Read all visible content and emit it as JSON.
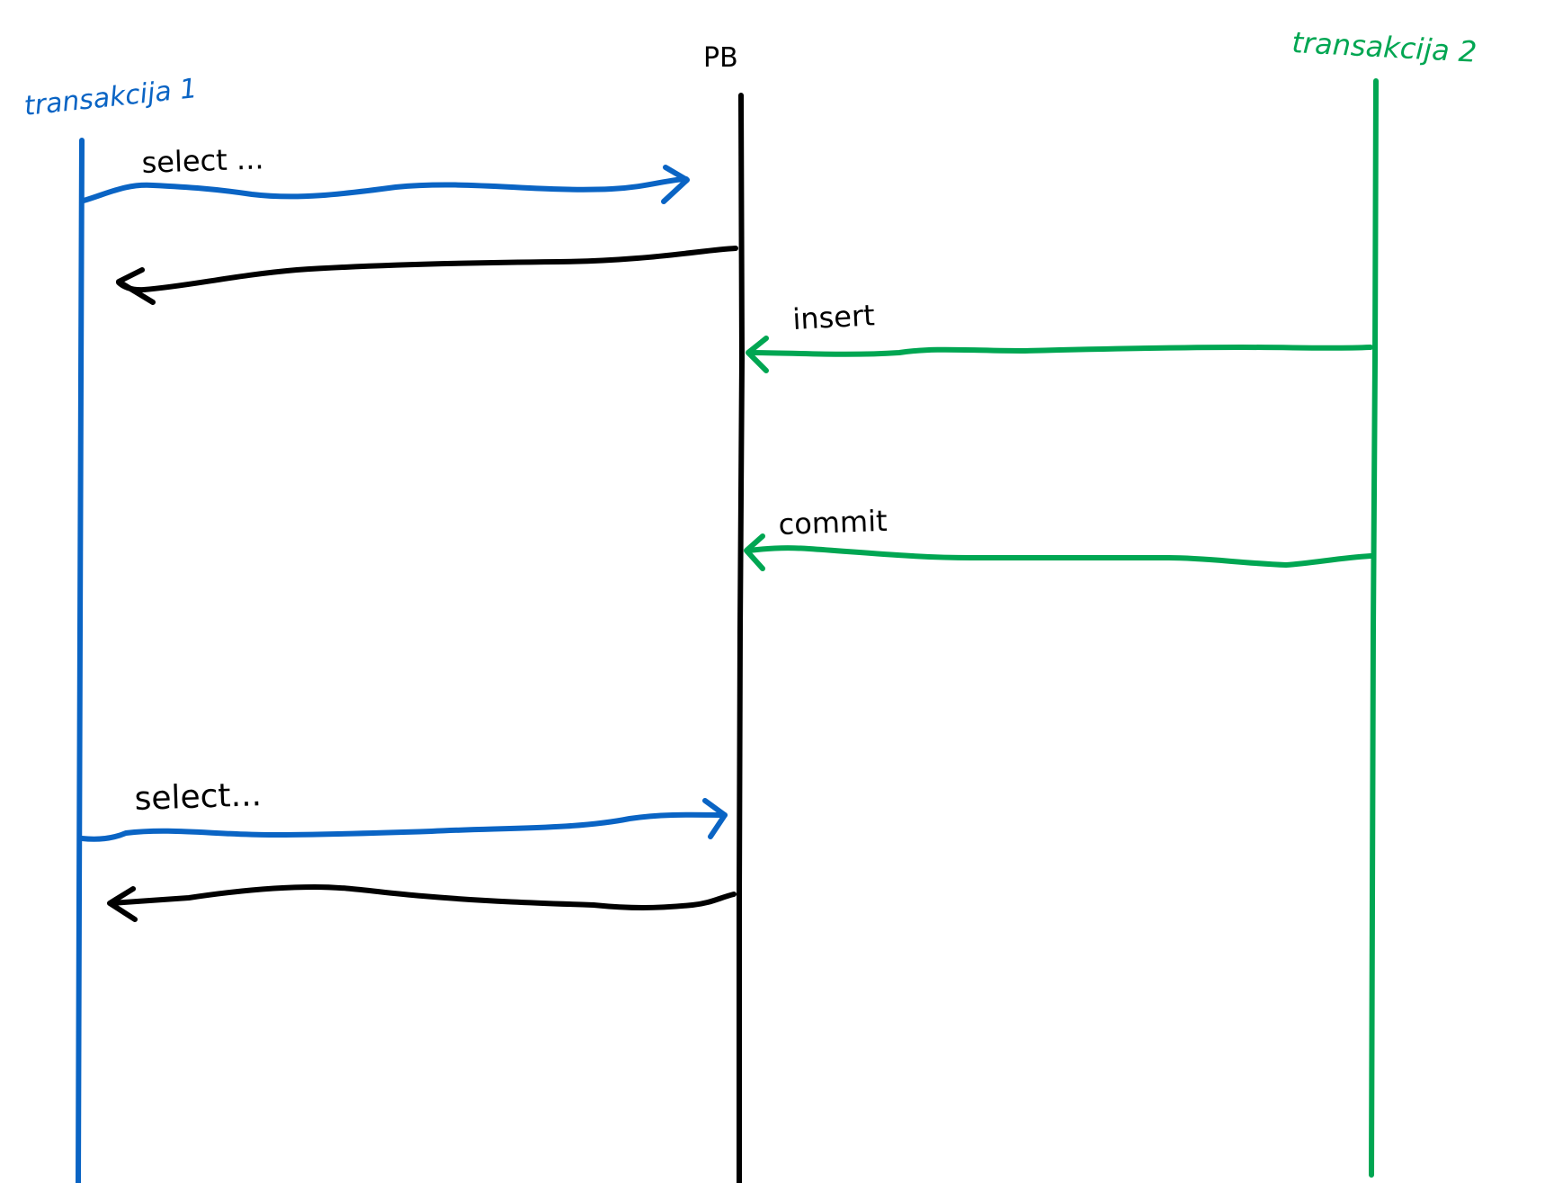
{
  "diagram": {
    "participants": {
      "t1": {
        "label": "transakcija 1",
        "color": "#0a64c4"
      },
      "db": {
        "label": "PB",
        "color": "#000000"
      },
      "t2": {
        "label": "transakcija 2",
        "color": "#00a652"
      }
    },
    "messages": [
      {
        "from": "t1",
        "to": "db",
        "label": "select ...",
        "color": "#0a64c4"
      },
      {
        "from": "db",
        "to": "t1",
        "label": "",
        "color": "#000000"
      },
      {
        "from": "t2",
        "to": "db",
        "label": "insert",
        "color": "#00a652"
      },
      {
        "from": "t2",
        "to": "db",
        "label": "commit",
        "color": "#00a652"
      },
      {
        "from": "t1",
        "to": "db",
        "label": "select...",
        "color": "#0a64c4"
      },
      {
        "from": "db",
        "to": "t1",
        "label": "",
        "color": "#000000"
      }
    ]
  }
}
